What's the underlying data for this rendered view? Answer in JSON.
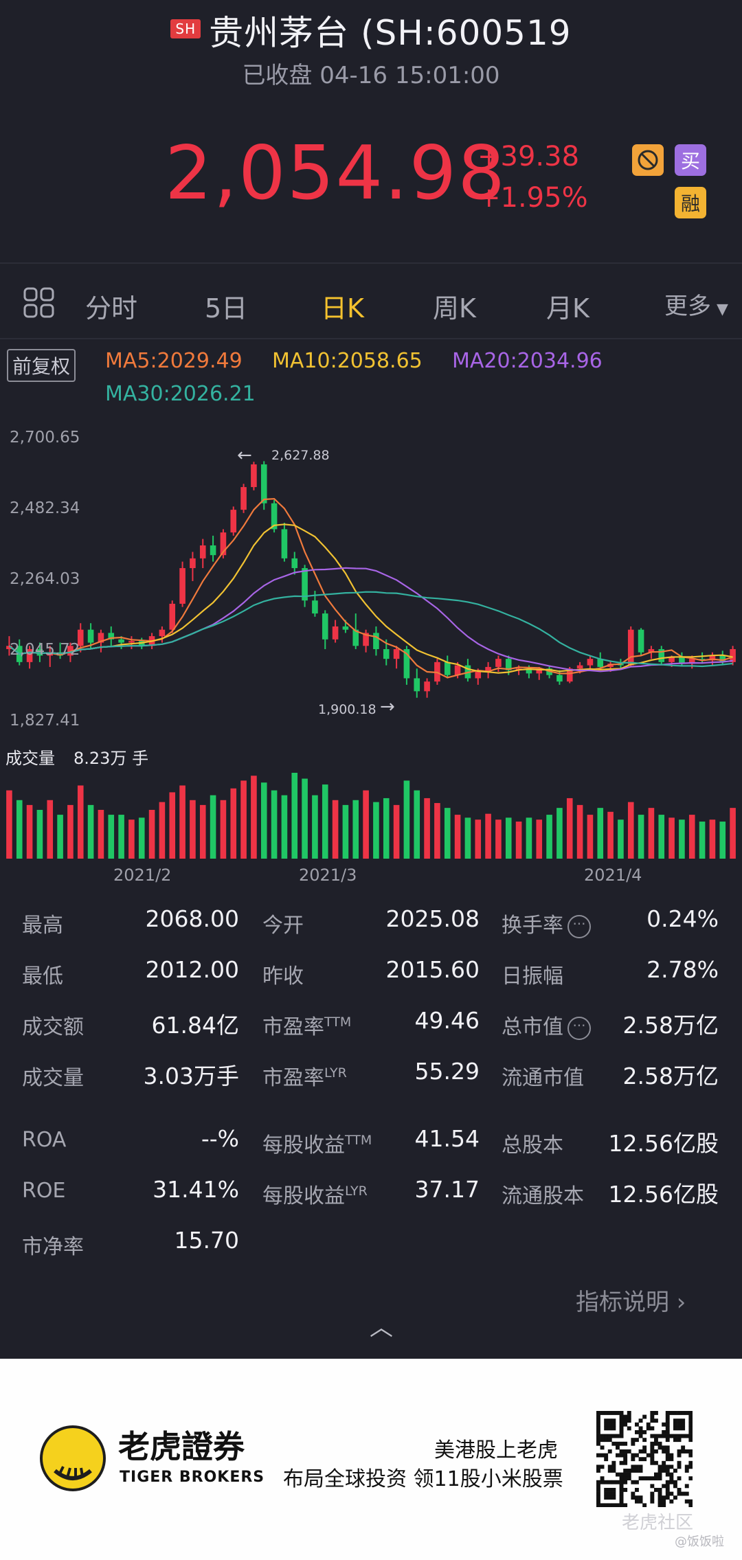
{
  "header": {
    "exchange_badge": "SH",
    "title": "贵州茅台 (SH:600519",
    "status": "已收盘 04-16 15:01:00"
  },
  "quote": {
    "price": "2,054.98",
    "change": "+39.38",
    "change_pct": "+1.95%",
    "buy_label": "买",
    "margin_label": "融"
  },
  "tabs": [
    {
      "label": "分时",
      "active": false
    },
    {
      "label": "5日",
      "active": false
    },
    {
      "label": "日K",
      "active": true
    },
    {
      "label": "周K",
      "active": false
    },
    {
      "label": "月K",
      "active": false
    },
    {
      "label": "更多",
      "active": false
    }
  ],
  "chart_header": {
    "adjust_label": "前复权",
    "ma5": "MA5:2029.49",
    "ma10": "MA10:2058.65",
    "ma20": "MA20:2034.96",
    "ma30": "MA30:2026.21"
  },
  "colors": {
    "up": "#ee3446",
    "down": "#20c765",
    "ma5": "#f07a3c",
    "ma10": "#f1c232",
    "ma20": "#a865e6",
    "ma30": "#34b2a0",
    "accent": "#f5c22e"
  },
  "volume": {
    "label": "成交量",
    "value": "8.23万 手"
  },
  "chart_data": {
    "type": "candlestick",
    "y_tick_labels": [
      "2,700.65",
      "2,482.34",
      "2,264.03",
      "2,045.72",
      "1,827.41"
    ],
    "ylim": [
      1827.41,
      2700.65
    ],
    "x_tick_labels": [
      "2021/2",
      "2021/3",
      "2021/4"
    ],
    "max_label": "2,627.88",
    "min_label": "1,900.18",
    "candles_ohlc": [
      [
        2050,
        2090,
        2030,
        2060
      ],
      [
        2060,
        2080,
        2000,
        2010
      ],
      [
        2010,
        2060,
        1990,
        2050
      ],
      [
        2050,
        2070,
        2010,
        2030
      ],
      [
        2030,
        2060,
        1995,
        2040
      ],
      [
        2040,
        2070,
        2020,
        2030
      ],
      [
        2030,
        2070,
        2010,
        2060
      ],
      [
        2060,
        2130,
        2040,
        2110
      ],
      [
        2110,
        2130,
        2050,
        2070
      ],
      [
        2070,
        2110,
        2040,
        2100
      ],
      [
        2100,
        2120,
        2060,
        2080
      ],
      [
        2080,
        2090,
        2050,
        2070
      ],
      [
        2070,
        2090,
        2050,
        2075
      ],
      [
        2075,
        2085,
        2050,
        2060
      ],
      [
        2060,
        2100,
        2050,
        2090
      ],
      [
        2090,
        2120,
        2070,
        2110
      ],
      [
        2110,
        2200,
        2100,
        2190
      ],
      [
        2190,
        2320,
        2180,
        2300
      ],
      [
        2300,
        2350,
        2260,
        2330
      ],
      [
        2330,
        2390,
        2300,
        2370
      ],
      [
        2370,
        2400,
        2320,
        2340
      ],
      [
        2340,
        2420,
        2330,
        2410
      ],
      [
        2410,
        2490,
        2400,
        2480
      ],
      [
        2480,
        2560,
        2470,
        2550
      ],
      [
        2550,
        2628,
        2540,
        2620
      ],
      [
        2620,
        2630,
        2480,
        2500
      ],
      [
        2500,
        2510,
        2410,
        2420
      ],
      [
        2420,
        2440,
        2320,
        2330
      ],
      [
        2330,
        2350,
        2280,
        2300
      ],
      [
        2300,
        2310,
        2180,
        2200
      ],
      [
        2200,
        2230,
        2150,
        2160
      ],
      [
        2160,
        2170,
        2050,
        2080
      ],
      [
        2080,
        2140,
        2070,
        2120
      ],
      [
        2120,
        2140,
        2100,
        2110
      ],
      [
        2110,
        2160,
        2050,
        2060
      ],
      [
        2060,
        2110,
        2040,
        2100
      ],
      [
        2100,
        2120,
        2030,
        2050
      ],
      [
        2050,
        2080,
        2000,
        2020
      ],
      [
        2020,
        2060,
        1990,
        2050
      ],
      [
        2050,
        2060,
        1940,
        1960
      ],
      [
        1960,
        1990,
        1900,
        1920
      ],
      [
        1920,
        1960,
        1900,
        1950
      ],
      [
        1950,
        2020,
        1940,
        2010
      ],
      [
        2010,
        2030,
        1960,
        1970
      ],
      [
        1970,
        2010,
        1960,
        2000
      ],
      [
        2000,
        2020,
        1950,
        1960
      ],
      [
        1960,
        1990,
        1940,
        1980
      ],
      [
        1980,
        2010,
        1960,
        1995
      ],
      [
        1995,
        2030,
        1980,
        2020
      ],
      [
        2020,
        2030,
        1970,
        1985
      ],
      [
        1985,
        2000,
        1970,
        1990
      ],
      [
        1990,
        2000,
        1960,
        1975
      ],
      [
        1975,
        1995,
        1955,
        1990
      ],
      [
        1990,
        2000,
        1960,
        1970
      ],
      [
        1970,
        1985,
        1940,
        1950
      ],
      [
        1950,
        1995,
        1945,
        1990
      ],
      [
        1990,
        2010,
        1975,
        2000
      ],
      [
        2000,
        2030,
        1990,
        2020
      ],
      [
        2020,
        2040,
        1985,
        1995
      ],
      [
        1995,
        2015,
        1980,
        2005
      ],
      [
        2005,
        2020,
        1990,
        2000
      ],
      [
        2000,
        2120,
        1995,
        2110
      ],
      [
        2110,
        2115,
        2030,
        2040
      ],
      [
        2040,
        2060,
        2020,
        2050
      ],
      [
        2050,
        2060,
        2000,
        2010
      ],
      [
        2010,
        2030,
        1995,
        2025
      ],
      [
        2025,
        2040,
        2000,
        2005
      ],
      [
        2005,
        2030,
        1990,
        2020
      ],
      [
        2020,
        2040,
        2005,
        2015
      ],
      [
        2015,
        2040,
        2000,
        2030
      ],
      [
        2030,
        2045,
        2000,
        2010
      ],
      [
        2010,
        2060,
        2000,
        2050
      ]
    ],
    "volume_series": [
      70,
      60,
      55,
      50,
      60,
      45,
      55,
      75,
      55,
      50,
      45,
      45,
      40,
      42,
      50,
      58,
      68,
      75,
      60,
      55,
      65,
      60,
      72,
      80,
      85,
      78,
      70,
      65,
      88,
      82,
      65,
      76,
      60,
      55,
      60,
      70,
      58,
      62,
      55,
      80,
      70,
      62,
      57,
      52,
      45,
      42,
      40,
      46,
      40,
      42,
      38,
      42,
      40,
      45,
      52,
      62,
      55,
      45,
      52,
      48,
      40,
      58,
      45,
      52,
      45,
      42,
      40,
      45,
      38,
      40,
      38,
      52
    ],
    "ma_note": "MA5, MA10, MA20, MA30 moving-average lines"
  },
  "stats": {
    "rows": [
      [
        {
          "label": "最高",
          "value": "2068.00"
        },
        {
          "label": "今开",
          "value": "2025.08"
        },
        {
          "label": "换手率",
          "value": "0.24%",
          "info": true
        }
      ],
      [
        {
          "label": "最低",
          "value": "2012.00"
        },
        {
          "label": "昨收",
          "value": "2015.60"
        },
        {
          "label": "日振幅",
          "value": "2.78%"
        }
      ],
      [
        {
          "label": "成交额",
          "value": "61.84亿"
        },
        {
          "label": "市盈率",
          "sup": "TTM",
          "value": "49.46"
        },
        {
          "label": "总市值",
          "value": "2.58万亿",
          "info": true
        }
      ],
      [
        {
          "label": "成交量",
          "value": "3.03万手"
        },
        {
          "label": "市盈率",
          "sup": "LYR",
          "value": "55.29"
        },
        {
          "label": "流通市值",
          "value": "2.58万亿"
        }
      ],
      [
        {
          "label": "ROA",
          "value": "--%"
        },
        {
          "label": "每股收益",
          "sup": "TTM",
          "value": "41.54"
        },
        {
          "label": "总股本",
          "value": "12.56亿股"
        }
      ],
      [
        {
          "label": "ROE",
          "value": "31.41%"
        },
        {
          "label": "每股收益",
          "sup": "LYR",
          "value": "37.17"
        },
        {
          "label": "流通股本",
          "value": "12.56亿股"
        }
      ],
      [
        {
          "label": "市净率",
          "value": "15.70"
        }
      ]
    ],
    "info_icon": "ⓘ"
  },
  "indicator_link": "指标说明 ›",
  "footer": {
    "brand_cn": "老虎證券",
    "brand_en": "TIGER BROKERS",
    "slogan1": "美港股上老虎",
    "slogan2": "布局全球投资 领11股小米股票",
    "watermark1": "老虎社区",
    "watermark2": "@饭饭啦"
  }
}
